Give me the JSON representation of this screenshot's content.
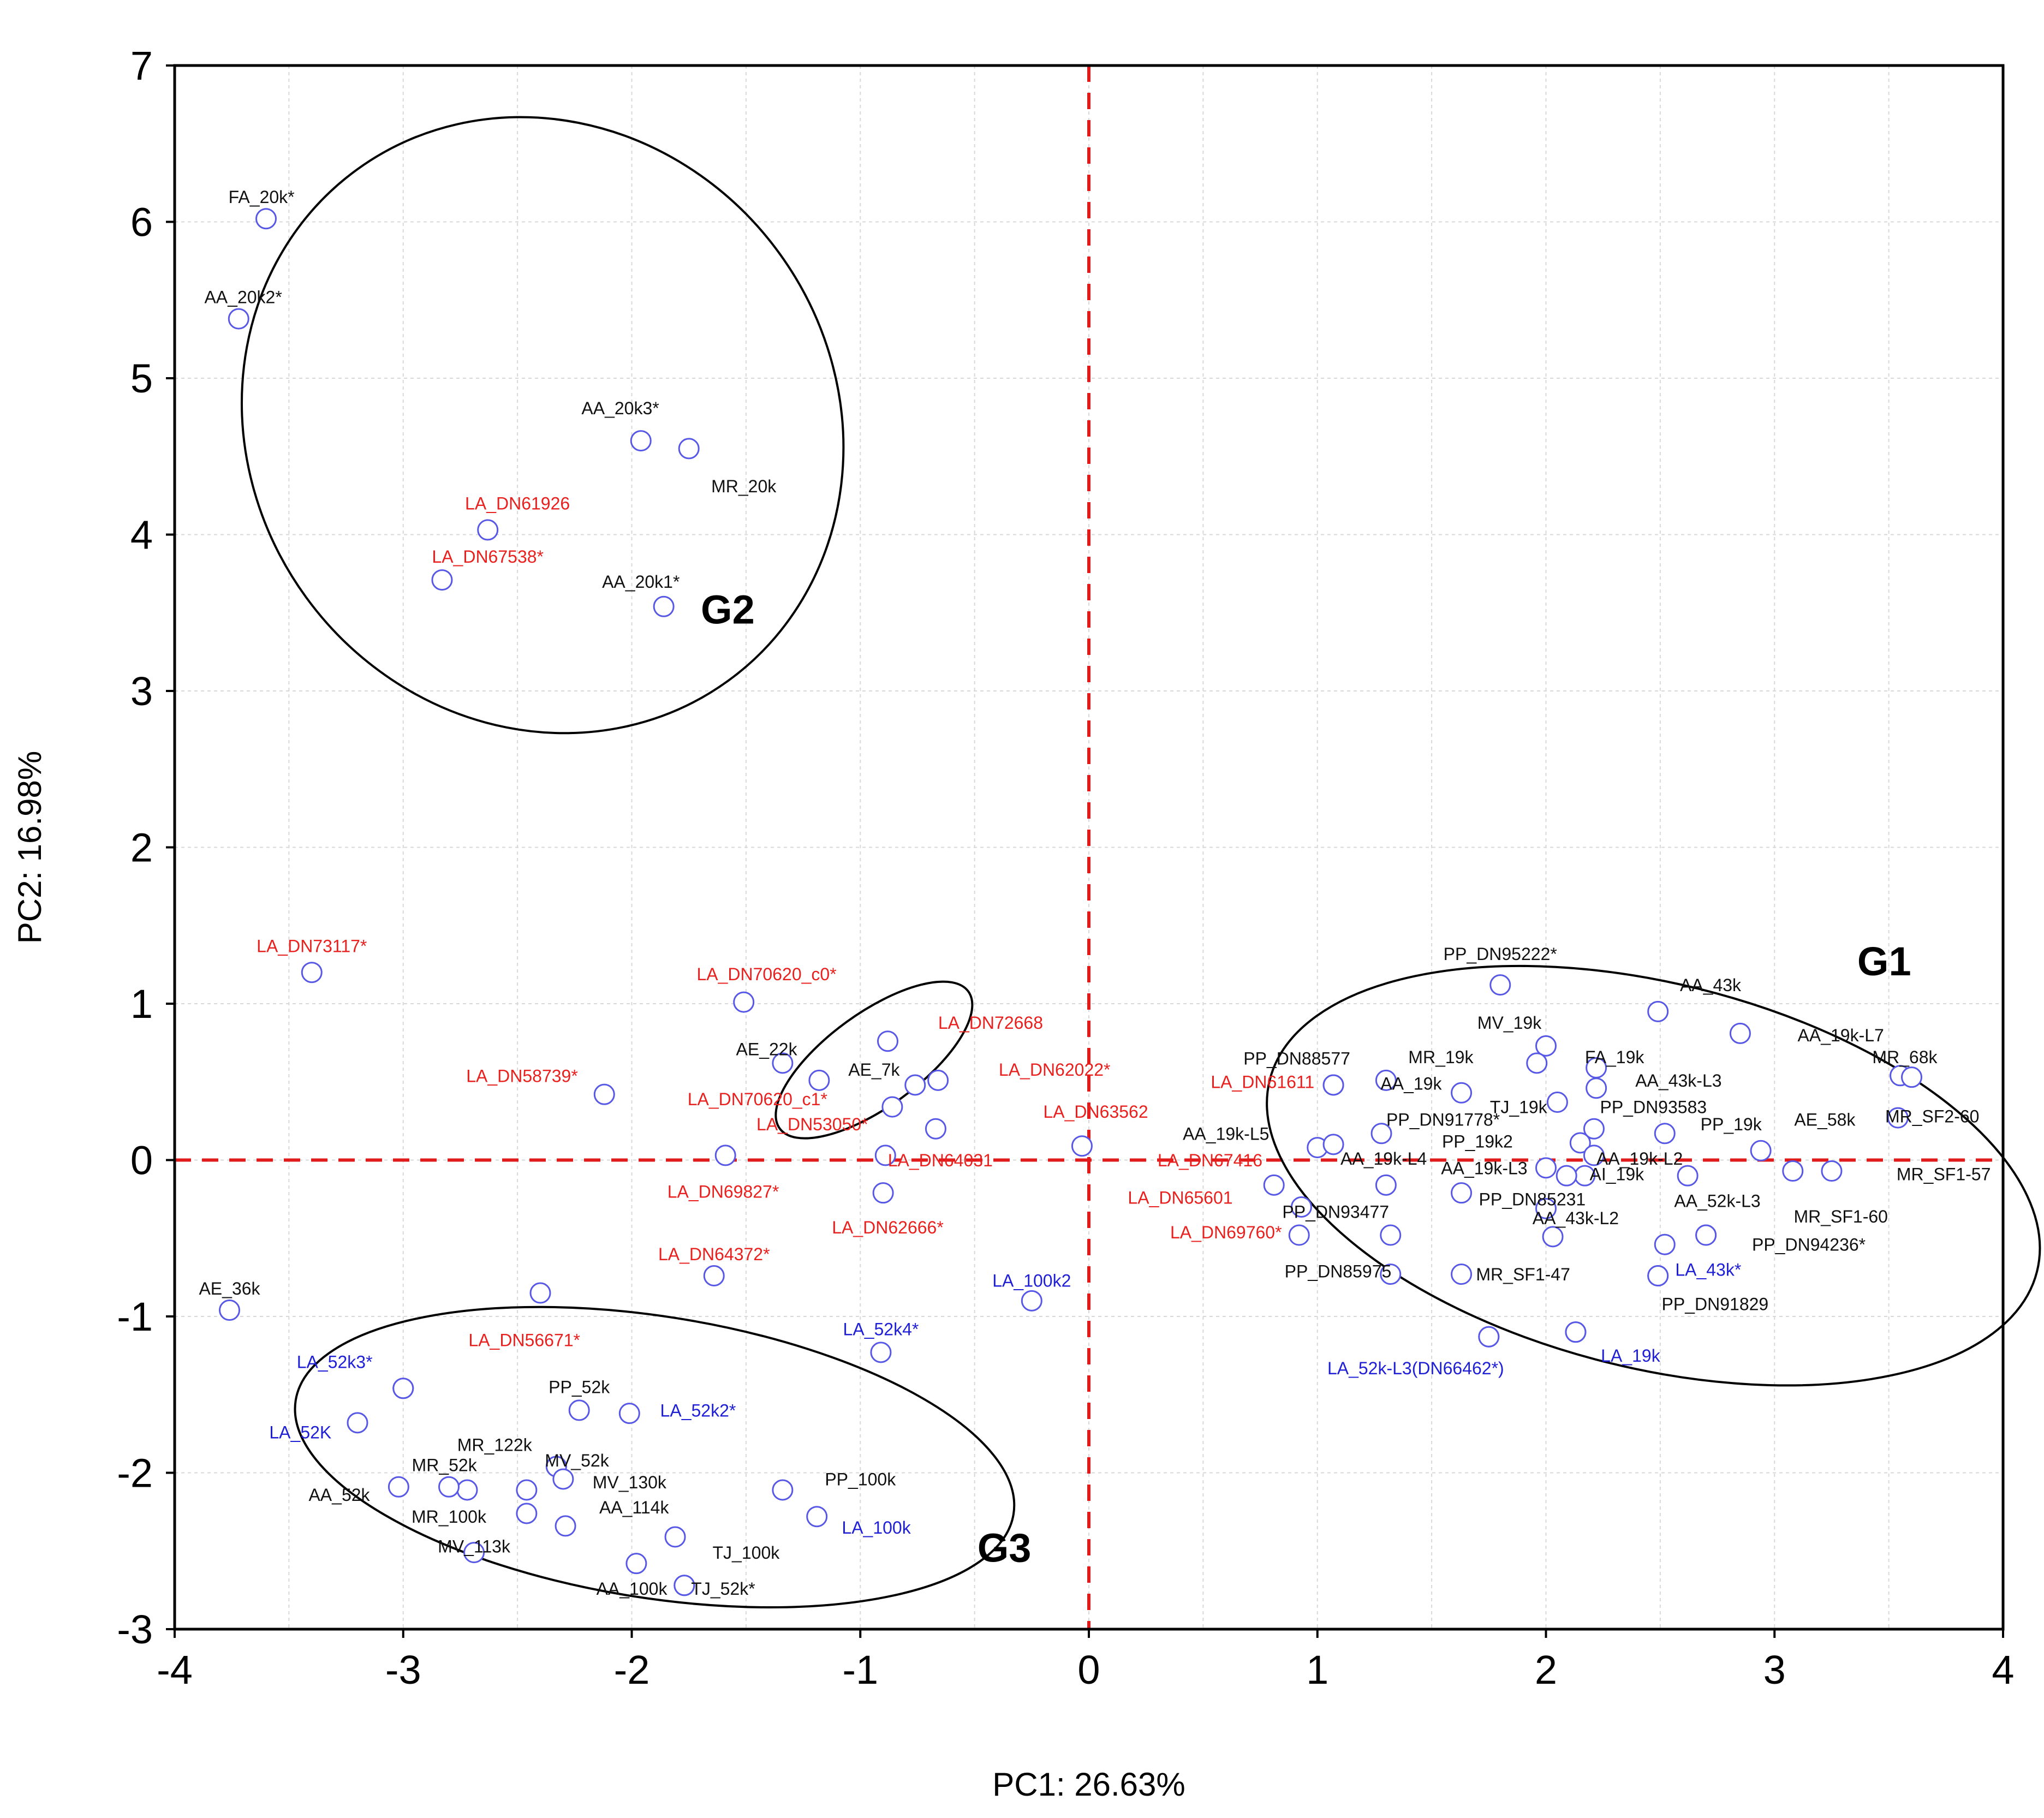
{
  "chart_data": {
    "type": "scatter",
    "title": "",
    "xlabel": "PC1: 26.63%",
    "ylabel": "PC2: 16.98%",
    "xlim": [
      -4,
      4
    ],
    "ylim": [
      -3,
      7
    ],
    "xticks": [
      "-4",
      "-3",
      "-2",
      "-1",
      "0",
      "1",
      "2",
      "3",
      "4"
    ],
    "yticks": [
      "-3",
      "-2",
      "-1",
      "0",
      "1",
      "2",
      "3",
      "4",
      "5",
      "6",
      "7"
    ],
    "grid": true,
    "colors": {
      "black": "#111111",
      "red": "#e8211f",
      "blue": "#1f1fd6",
      "marker": "#5858e6",
      "reference": "#e01b1b"
    },
    "groups": [
      {
        "name": "G1",
        "center": [
          2.47,
          -0.1
        ],
        "radii": [
          1.73,
          1.23
        ],
        "angle": 14,
        "label_at": [
          3.48,
          1.25
        ]
      },
      {
        "name": "G2",
        "center": [
          -2.39,
          4.7
        ],
        "radii": [
          1.28,
          2.02
        ],
        "angle": -36,
        "label_at": [
          -1.58,
          3.5
        ]
      },
      {
        "name": "G3",
        "center": [
          -1.9,
          -1.9
        ],
        "radii": [
          1.59,
          0.9
        ],
        "angle": 9,
        "label_at": [
          -0.37,
          -2.5
        ]
      },
      {
        "name": "",
        "center": [
          -0.94,
          0.64
        ],
        "radii": [
          0.51,
          0.3
        ],
        "angle": -36,
        "label_at": null
      }
    ],
    "points": [
      {
        "label": "FA_20k*",
        "x": -3.6,
        "y": 6.02,
        "color": "black",
        "label_at": [
          -3.62,
          6.12
        ]
      },
      {
        "label": "AA_20k2*",
        "x": -3.72,
        "y": 5.38,
        "color": "black",
        "label_at": [
          -3.7,
          5.48
        ]
      },
      {
        "label": "AA_20k3*",
        "x": -1.96,
        "y": 4.6,
        "color": "black",
        "label_at": [
          -2.05,
          4.77
        ]
      },
      {
        "label": "MR_20k",
        "x": -1.75,
        "y": 4.55,
        "color": "black",
        "label_at": [
          -1.51,
          4.27
        ]
      },
      {
        "label": "LA_DN61926",
        "x": -2.63,
        "y": 4.03,
        "color": "red",
        "label_at": [
          -2.5,
          4.16
        ]
      },
      {
        "label": "LA_DN67538*",
        "x": -2.83,
        "y": 3.71,
        "color": "red",
        "label_at": [
          -2.63,
          3.82
        ]
      },
      {
        "label": "AA_20k1*",
        "x": -1.86,
        "y": 3.54,
        "color": "black",
        "label_at": [
          -1.96,
          3.66
        ]
      },
      {
        "label": "LA_DN73117*",
        "x": -3.4,
        "y": 1.2,
        "color": "red",
        "label_at": [
          -3.4,
          1.33
        ]
      },
      {
        "label": "LA_DN70620_c0*",
        "x": -1.51,
        "y": 1.01,
        "color": "red",
        "label_at": [
          -1.41,
          1.15
        ]
      },
      {
        "label": "LA_DN72668",
        "x": -0.88,
        "y": 0.76,
        "color": "red",
        "label_at": [
          -0.43,
          0.84
        ]
      },
      {
        "label": "AE_22k",
        "x": -1.34,
        "y": 0.62,
        "color": "black",
        "label_at": [
          -1.41,
          0.67
        ]
      },
      {
        "label": "AE_7k",
        "x": -1.18,
        "y": 0.51,
        "color": "black",
        "label_at": [
          -0.94,
          0.54
        ]
      },
      {
        "label": "LA_DN62022*",
        "x": -0.66,
        "y": 0.51,
        "color": "red",
        "label_at": [
          -0.15,
          0.54
        ]
      },
      {
        "label": "",
        "x": -0.76,
        "y": 0.48,
        "color": "black",
        "label_at": null
      },
      {
        "label": "LA_DN58739*",
        "x": -2.12,
        "y": 0.42,
        "color": "red",
        "label_at": [
          -2.48,
          0.5
        ]
      },
      {
        "label": "LA_DN70620_c1*",
        "x": -0.86,
        "y": 0.34,
        "color": "red",
        "label_at": [
          -1.45,
          0.35
        ]
      },
      {
        "label": "LA_DN53050*",
        "x": -0.67,
        "y": 0.2,
        "color": "red",
        "label_at": [
          -1.21,
          0.19
        ]
      },
      {
        "label": "LA_DN63562",
        "x": -0.03,
        "y": 0.09,
        "color": "red",
        "label_at": [
          0.03,
          0.27
        ]
      },
      {
        "label": "LA_DN64031",
        "x": -0.89,
        "y": 0.03,
        "color": "red",
        "label_at": [
          -0.65,
          -0.04
        ]
      },
      {
        "label": "",
        "x": -1.59,
        "y": 0.03,
        "color": "black",
        "label_at": null
      },
      {
        "label": "LA_DN69827*",
        "x": -0.9,
        "y": -0.21,
        "color": "red",
        "label_at": [
          -1.6,
          -0.24
        ]
      },
      {
        "label": "LA_DN62666*",
        "x": -1.64,
        "y": -0.74,
        "color": "red",
        "label_at": [
          -0.88,
          -0.47
        ]
      },
      {
        "label": "LA_DN64372*",
        "x": -2.4,
        "y": -0.85,
        "color": "red",
        "label_at": [
          -1.64,
          -0.64
        ]
      },
      {
        "label": "AE_36k",
        "x": -3.76,
        "y": -0.96,
        "color": "black",
        "label_at": [
          -3.76,
          -0.86
        ]
      },
      {
        "label": "LA_100k2",
        "x": -0.25,
        "y": -0.9,
        "color": "blue",
        "label_at": [
          -0.25,
          -0.81
        ]
      },
      {
        "label": "LA_52k4*",
        "x": -0.91,
        "y": -1.23,
        "color": "blue",
        "label_at": [
          -0.91,
          -1.12
        ]
      },
      {
        "label": "LA_DN56671*",
        "x": -3.0,
        "y": -1.46,
        "color": "red",
        "label_at": [
          -2.47,
          -1.19
        ]
      },
      {
        "label": "LA_52k3*",
        "x": -3.0,
        "y": -1.46,
        "color": "blue",
        "label_at": [
          -3.3,
          -1.33
        ]
      },
      {
        "label": "LA_52K",
        "x": -3.2,
        "y": -1.68,
        "color": "blue",
        "label_at": [
          -3.45,
          -1.78
        ]
      },
      {
        "label": "PP_52k",
        "x": -2.23,
        "y": -1.6,
        "color": "black",
        "label_at": [
          -2.23,
          -1.49
        ]
      },
      {
        "label": "LA_52k2*",
        "x": -2.01,
        "y": -1.62,
        "color": "blue",
        "label_at": [
          -1.71,
          -1.64
        ]
      },
      {
        "label": "MR_122k",
        "x": -2.33,
        "y": -1.96,
        "color": "black",
        "label_at": [
          -2.6,
          -1.86
        ]
      },
      {
        "label": "MV_52k",
        "x": -2.33,
        "y": -1.96,
        "color": "black",
        "label_at": [
          -2.24,
          -1.96
        ]
      },
      {
        "label": "MR_52k",
        "x": -2.72,
        "y": -2.11,
        "color": "black",
        "label_at": [
          -2.82,
          -1.99
        ]
      },
      {
        "label": "MV_130k",
        "x": -2.3,
        "y": -2.04,
        "color": "black",
        "label_at": [
          -2.01,
          -2.1
        ]
      },
      {
        "label": "AA_52k",
        "x": -3.02,
        "y": -2.09,
        "color": "black",
        "label_at": [
          -3.28,
          -2.18
        ]
      },
      {
        "label": "",
        "x": -2.8,
        "y": -2.09,
        "color": "black",
        "label_at": null
      },
      {
        "label": "",
        "x": -2.46,
        "y": -2.11,
        "color": "black",
        "label_at": null
      },
      {
        "label": "PP_100k",
        "x": -1.34,
        "y": -2.11,
        "color": "black",
        "label_at": [
          -1.0,
          -2.08
        ]
      },
      {
        "label": "MR_100k",
        "x": -2.46,
        "y": -2.26,
        "color": "black",
        "label_at": [
          -2.8,
          -2.32
        ]
      },
      {
        "label": "AA_114k",
        "x": -2.29,
        "y": -2.34,
        "color": "black",
        "label_at": [
          -1.99,
          -2.26
        ]
      },
      {
        "label": "LA_100k",
        "x": -1.19,
        "y": -2.28,
        "color": "blue",
        "label_at": [
          -0.93,
          -2.39
        ]
      },
      {
        "label": "",
        "x": -1.81,
        "y": -2.41,
        "color": "black",
        "label_at": null
      },
      {
        "label": "MV_113k",
        "x": -2.69,
        "y": -2.51,
        "color": "black",
        "label_at": [
          -2.69,
          -2.51
        ]
      },
      {
        "label": "TJ_100k",
        "x": -1.98,
        "y": -2.58,
        "color": "black",
        "label_at": [
          -1.5,
          -2.55
        ]
      },
      {
        "label": "AA_100k",
        "x": -1.77,
        "y": -2.72,
        "color": "black",
        "label_at": [
          -2.0,
          -2.78
        ]
      },
      {
        "label": "TJ_52k*",
        "x": -1.77,
        "y": -2.72,
        "color": "black",
        "label_at": [
          -1.6,
          -2.78
        ]
      },
      {
        "label": "PP_DN95222*",
        "x": 1.8,
        "y": 1.12,
        "color": "black",
        "label_at": [
          1.8,
          1.28
        ]
      },
      {
        "label": "AA_43k",
        "x": 2.49,
        "y": 0.95,
        "color": "black",
        "label_at": [
          2.72,
          1.08
        ]
      },
      {
        "label": "MV_19k",
        "x": 2.0,
        "y": 0.73,
        "color": "black",
        "label_at": [
          1.84,
          0.84
        ]
      },
      {
        "label": "AA_19k-L7",
        "x": 2.85,
        "y": 0.81,
        "color": "black",
        "label_at": [
          3.29,
          0.76
        ]
      },
      {
        "label": "MR_68k",
        "x": 3.55,
        "y": 0.54,
        "color": "black",
        "label_at": [
          3.57,
          0.62
        ]
      },
      {
        "label": "",
        "x": 3.6,
        "y": 0.53,
        "color": "black",
        "label_at": null
      },
      {
        "label": "PP_DN88577",
        "x": 1.07,
        "y": 0.48,
        "color": "black",
        "label_at": [
          0.91,
          0.61
        ]
      },
      {
        "label": "MR_19k",
        "x": 1.3,
        "y": 0.51,
        "color": "black",
        "label_at": [
          1.54,
          0.62
        ]
      },
      {
        "label": "FA_19k",
        "x": 1.96,
        "y": 0.62,
        "color": "black",
        "label_at": [
          2.3,
          0.62
        ]
      },
      {
        "label": "AA_19k",
        "x": 1.63,
        "y": 0.43,
        "color": "black",
        "label_at": [
          1.41,
          0.45
        ]
      },
      {
        "label": "AA_43k-L3",
        "x": 2.22,
        "y": 0.46,
        "color": "black",
        "label_at": [
          2.58,
          0.47
        ]
      },
      {
        "label": "",
        "x": 2.22,
        "y": 0.59,
        "color": "black",
        "label_at": null
      },
      {
        "label": "LA_DN61611",
        "x": 1.07,
        "y": 0.48,
        "color": "red",
        "label_at": [
          0.76,
          0.46
        ]
      },
      {
        "label": "TJ_19k",
        "x": 2.05,
        "y": 0.37,
        "color": "black",
        "label_at": [
          1.88,
          0.3
        ]
      },
      {
        "label": "PP_DN93583",
        "x": 2.21,
        "y": 0.2,
        "color": "black",
        "label_at": [
          2.47,
          0.3
        ]
      },
      {
        "label": "PP_DN91778*",
        "x": 1.28,
        "y": 0.17,
        "color": "black",
        "label_at": [
          1.55,
          0.22
        ]
      },
      {
        "label": "AA_19k-L5",
        "x": 1.0,
        "y": 0.08,
        "color": "black",
        "label_at": [
          0.6,
          0.13
        ]
      },
      {
        "label": "",
        "x": 1.07,
        "y": 0.1,
        "color": "black",
        "label_at": null
      },
      {
        "label": "PP_19k",
        "x": 2.52,
        "y": 0.17,
        "color": "black",
        "label_at": [
          2.81,
          0.19
        ]
      },
      {
        "label": "AE_58k",
        "x": 2.94,
        "y": 0.06,
        "color": "black",
        "label_at": [
          3.22,
          0.22
        ]
      },
      {
        "label": "MR_SF2-60",
        "x": 3.54,
        "y": 0.27,
        "color": "black",
        "label_at": [
          3.69,
          0.24
        ]
      },
      {
        "label": "PP_19k2",
        "x": 2.15,
        "y": 0.11,
        "color": "black",
        "label_at": [
          1.7,
          0.08
        ]
      },
      {
        "label": "LA_DN67416",
        "x": 0.81,
        "y": -0.16,
        "color": "red",
        "label_at": [
          0.53,
          -0.04
        ]
      },
      {
        "label": "AA_19k-L4",
        "x": 1.3,
        "y": -0.16,
        "color": "black",
        "label_at": [
          1.29,
          -0.03
        ]
      },
      {
        "label": "AA_19k-L3",
        "x": 1.63,
        "y": -0.21,
        "color": "black",
        "label_at": [
          1.73,
          -0.09
        ]
      },
      {
        "label": "AA_19k-L2",
        "x": 2.21,
        "y": 0.03,
        "color": "black",
        "label_at": [
          2.41,
          -0.03
        ]
      },
      {
        "label": "AI_19k",
        "x": 2.17,
        "y": -0.1,
        "color": "black",
        "label_at": [
          2.31,
          -0.13
        ]
      },
      {
        "label": "",
        "x": 2.09,
        "y": -0.1,
        "color": "black",
        "label_at": null
      },
      {
        "label": "",
        "x": 2.0,
        "y": -0.05,
        "color": "black",
        "label_at": null
      },
      {
        "label": "",
        "x": 2.62,
        "y": -0.1,
        "color": "black",
        "label_at": null
      },
      {
        "label": "",
        "x": 3.08,
        "y": -0.07,
        "color": "black",
        "label_at": null
      },
      {
        "label": "MR_SF1-57",
        "x": 3.25,
        "y": -0.07,
        "color": "black",
        "label_at": [
          3.74,
          -0.13
        ]
      },
      {
        "label": "LA_DN65601",
        "x": 0.93,
        "y": -0.3,
        "color": "red",
        "label_at": [
          0.4,
          -0.28
        ]
      },
      {
        "label": "PP_DN85231",
        "x": 2.0,
        "y": -0.31,
        "color": "black",
        "label_at": [
          1.94,
          -0.29
        ]
      },
      {
        "label": "AA_52k-L3",
        "x": 2.52,
        "y": -0.54,
        "color": "black",
        "label_at": [
          2.75,
          -0.3
        ]
      },
      {
        "label": "PP_DN93477",
        "x": 1.32,
        "y": -0.48,
        "color": "black",
        "label_at": [
          1.08,
          -0.37
        ]
      },
      {
        "label": "AA_43k-L2",
        "x": 2.03,
        "y": -0.49,
        "color": "black",
        "label_at": [
          2.13,
          -0.41
        ]
      },
      {
        "label": "MR_SF1-60",
        "x": 2.7,
        "y": -0.48,
        "color": "black",
        "label_at": [
          3.29,
          -0.4
        ]
      },
      {
        "label": "LA_DN69760*",
        "x": 0.92,
        "y": -0.48,
        "color": "red",
        "label_at": [
          0.6,
          -0.5
        ]
      },
      {
        "label": "PP_DN94236*",
        "x": 2.7,
        "y": -0.48,
        "color": "black",
        "label_at": [
          3.15,
          -0.58
        ]
      },
      {
        "label": "PP_DN85975",
        "x": 1.32,
        "y": -0.73,
        "color": "black",
        "label_at": [
          1.09,
          -0.75
        ]
      },
      {
        "label": "MR_SF1-47",
        "x": 1.63,
        "y": -0.73,
        "color": "black",
        "label_at": [
          1.9,
          -0.77
        ]
      },
      {
        "label": "LA_43k*",
        "x": 2.49,
        "y": -0.74,
        "color": "blue",
        "label_at": [
          2.71,
          -0.74
        ]
      },
      {
        "label": "PP_DN91829",
        "x": 2.49,
        "y": -0.74,
        "color": "black",
        "label_at": [
          2.74,
          -0.96
        ]
      },
      {
        "label": "",
        "x": 1.75,
        "y": -1.13,
        "color": "black",
        "label_at": null
      },
      {
        "label": "",
        "x": 2.13,
        "y": -1.1,
        "color": "black",
        "label_at": null
      },
      {
        "label": "LA_52k-L3(DN66462*)",
        "x": 1.75,
        "y": -1.13,
        "color": "blue",
        "label_at": [
          1.43,
          -1.37
        ]
      },
      {
        "label": "LA_19k",
        "x": 2.13,
        "y": -1.1,
        "color": "blue",
        "label_at": [
          2.37,
          -1.29
        ]
      }
    ]
  }
}
